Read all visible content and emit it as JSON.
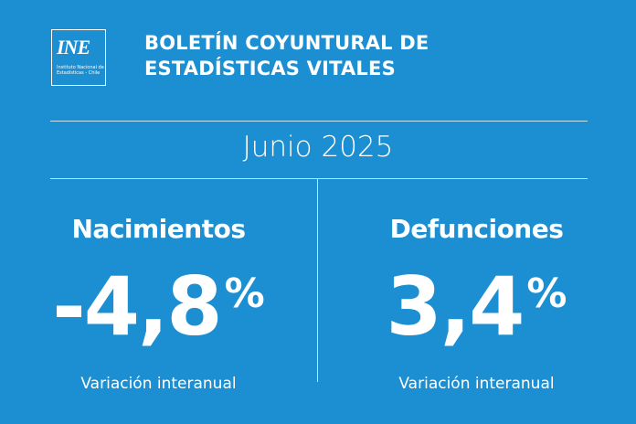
{
  "logo": {
    "mark": "INE",
    "subtitle": "Instituto Nacional de Estadísticas - Chile"
  },
  "header": {
    "title_line1": "BOLETÍN COYUNTURAL DE",
    "title_line2": "ESTADÍSTICAS VITALES"
  },
  "period": "Junio 2025",
  "panels": [
    {
      "label": "Nacimientos",
      "value": "-4,8",
      "unit": "%",
      "note": "Variación interanual"
    },
    {
      "label": "Defunciones",
      "value": "3,4",
      "unit": "%",
      "note": "Variación interanual"
    }
  ]
}
